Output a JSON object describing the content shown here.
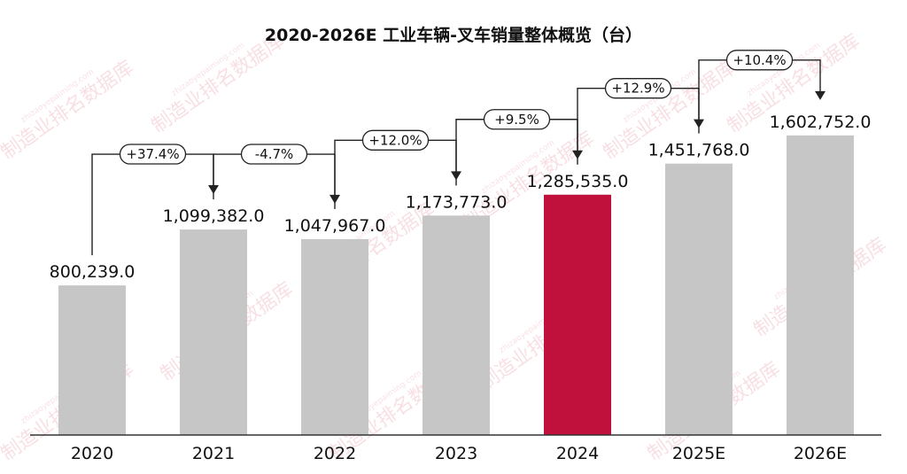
{
  "chart_data": {
    "type": "bar",
    "title": "2020-2026E 工业车辆-叉车销量整体概览（台）",
    "categories": [
      "2020",
      "2021",
      "2022",
      "2023",
      "2024",
      "2025E",
      "2026E"
    ],
    "values": [
      800239.0,
      1099382.0,
      1047967.0,
      1173773.0,
      1285535.0,
      1451768.0,
      1602752.0
    ],
    "value_labels": [
      "800,239.0",
      "1,099,382.0",
      "1,047,967.0",
      "1,173,773.0",
      "1,285,535.0",
      "1,451,768.0",
      "1,602,752.0"
    ],
    "growth_labels": [
      "+37.4%",
      "-4.7%",
      "+12.0%",
      "+9.5%",
      "+12.9%",
      "+10.4%"
    ],
    "highlight_category": "2024",
    "colors": {
      "bar": "#c6c6c6",
      "highlight": "#c0103c",
      "axis": "#333333",
      "arrow": "#222222"
    },
    "ylim": [
      0,
      1800000
    ],
    "grid": false,
    "legend": "none",
    "xlabel": "",
    "ylabel": ""
  },
  "watermark": {
    "text": "制造业排名数据库",
    "url": "zhizaoyepaiming.com"
  }
}
